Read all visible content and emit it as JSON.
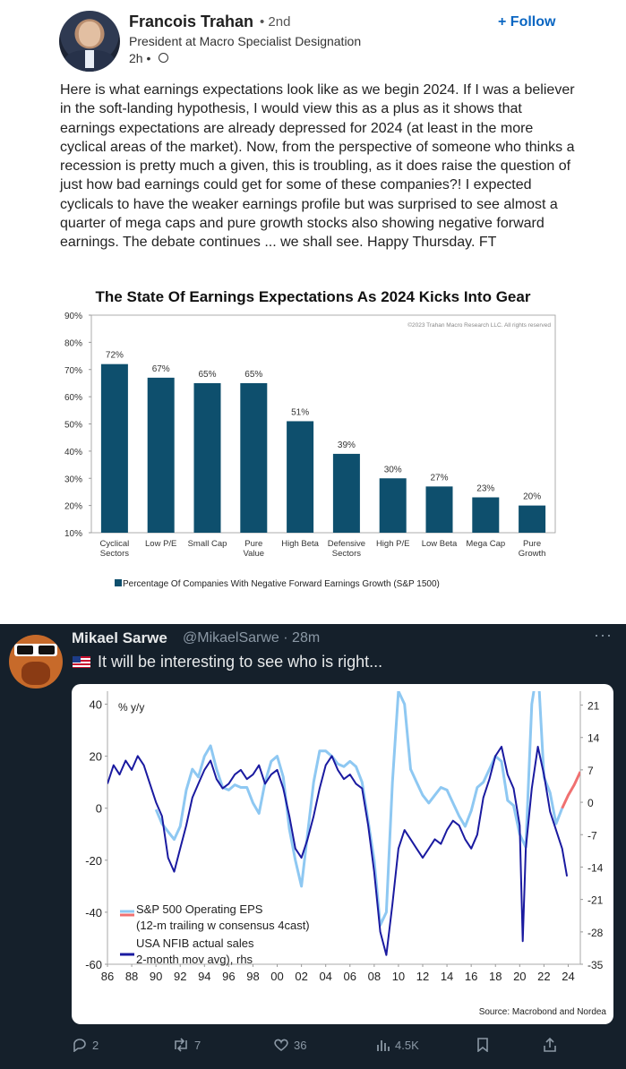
{
  "linkedin": {
    "author_name": "Francois Trahan",
    "connection_degree": "• 2nd",
    "headline": "President at Macro Specialist Designation",
    "time": "2h •",
    "follow_label": "+ Follow",
    "post_text": "Here is what earnings expectations look like as we begin 2024. If I was a believer in the soft-landing hypothesis, I would view this as a plus as it shows that earnings expectations are already depressed for 2024 (at least in the more cyclical areas of the market). Now, from the perspective of someone who thinks a recession is pretty much a given, this is troubling, as it does raise the question of just how bad earnings could get for some of these companies?! I expected cyclicals to have the weaker earnings profile but was surprised to see almost a quarter of mega caps and pure growth stocks also showing negative forward earnings. The debate continues ... we shall see. Happy Thursday. FT"
  },
  "tweet": {
    "author_name": "Mikael Sarwe",
    "handle_time": "@MikaelSarwe · 28m",
    "more_icon": "more-icon",
    "text": "It will be interesting to see who is right...",
    "source": "Source: Macrobond and Nordea",
    "actions": {
      "replies": "2",
      "retweets": "7",
      "likes": "36",
      "views": "4.5K"
    }
  },
  "chart_data": [
    {
      "type": "bar",
      "title": "The State Of Earnings Expectations As 2024 Kicks Into Gear",
      "copyright": "©2023 Trahan Macro Research LLC. All rights reserved",
      "categories": [
        [
          "Cyclical",
          "Sectors"
        ],
        [
          "Low P/E"
        ],
        [
          "Small Cap"
        ],
        [
          "Pure",
          "Value"
        ],
        [
          "High Beta"
        ],
        [
          "Defensive",
          "Sectors"
        ],
        [
          "High P/E"
        ],
        [
          "Low Beta"
        ],
        [
          "Mega Cap"
        ],
        [
          "Pure",
          "Growth"
        ]
      ],
      "values": [
        72,
        67,
        65,
        65,
        51,
        39,
        30,
        27,
        23,
        20
      ],
      "data_labels": [
        "72%",
        "67%",
        "65%",
        "65%",
        "51%",
        "39%",
        "30%",
        "27%",
        "23%",
        "20%"
      ],
      "yticks": [
        "90%",
        "80%",
        "70%",
        "60%",
        "50%",
        "40%",
        "30%",
        "20%",
        "10%"
      ],
      "ylim": [
        10,
        90
      ],
      "legend": "Percentage Of Companies With Negative Forward Earnings Growth (S&P 1500)",
      "color": "#0e4f6d"
    },
    {
      "type": "line",
      "ylabel_left": "% y/y",
      "yticks_left": [
        "40",
        "20",
        "0",
        "-20",
        "-40",
        "-60"
      ],
      "ylim_left": [
        -60,
        45
      ],
      "yticks_right": [
        "21",
        "14",
        "7",
        "0",
        "-7",
        "-14",
        "-21",
        "-28",
        "-35"
      ],
      "ylim_right": [
        -35,
        24
      ],
      "xticks": [
        "86",
        "88",
        "90",
        "92",
        "94",
        "96",
        "98",
        "00",
        "02",
        "04",
        "06",
        "08",
        "10",
        "12",
        "14",
        "16",
        "18",
        "20",
        "22",
        "24"
      ],
      "xlim": [
        1986,
        2025
      ],
      "series": [
        {
          "name": "S&P 500 Operating EPS (12-m trailing w consensus 4cast)",
          "legend_lines": [
            "S&P 500 Operating EPS",
            "(12-m trailing w consensus 4cast)"
          ],
          "axis": "left",
          "color": "#8ec8f2",
          "forecast_color": "#f07070",
          "x": [
            1990.0,
            1990.5,
            1991.0,
            1991.5,
            1992.0,
            1992.5,
            1993.0,
            1993.5,
            1994.0,
            1994.5,
            1995.0,
            1995.5,
            1996.0,
            1996.5,
            1997.0,
            1997.5,
            1998.0,
            1998.5,
            1999.0,
            1999.5,
            2000.0,
            2000.5,
            2001.0,
            2001.5,
            2002.0,
            2002.5,
            2003.0,
            2003.5,
            2004.0,
            2004.5,
            2005.0,
            2005.5,
            2006.0,
            2006.5,
            2007.0,
            2007.5,
            2008.0,
            2008.5,
            2009.0,
            2009.5,
            2010.0,
            2010.5,
            2011.0,
            2011.5,
            2012.0,
            2012.5,
            2013.0,
            2013.5,
            2014.0,
            2014.5,
            2015.0,
            2015.5,
            2016.0,
            2016.5,
            2017.0,
            2017.5,
            2018.0,
            2018.5,
            2019.0,
            2019.5,
            2020.0,
            2020.5,
            2021.0,
            2021.5,
            2022.0,
            2022.5,
            2023.0,
            2023.5
          ],
          "y": [
            -0.5,
            -6,
            -9,
            -12,
            -7,
            7,
            15,
            12,
            20,
            24,
            15,
            8,
            7,
            9,
            8,
            8,
            2,
            -2,
            10,
            18,
            20,
            12,
            -8,
            -20,
            -30,
            -10,
            10,
            22,
            22,
            20,
            17,
            16,
            18,
            16,
            10,
            -5,
            -20,
            -45,
            -40,
            10,
            45,
            40,
            15,
            10,
            5,
            2,
            5,
            8,
            7,
            2,
            -3,
            -7,
            -1,
            8,
            10,
            15,
            20,
            18,
            3,
            1,
            -10,
            -15,
            40,
            55,
            12,
            6,
            -6,
            0
          ],
          "forecast_x": [
            2024.0,
            2024.5,
            2025.0
          ],
          "forecast_y": [
            5,
            9,
            14
          ]
        },
        {
          "name": "USA NFIB actual sales 2-month mov avg), rhs",
          "legend_lines": [
            "USA NFIB actual sales",
            "2-month mov avg), rhs"
          ],
          "axis": "right",
          "color": "#1a1aa0",
          "x": [
            1986.0,
            1986.5,
            1987.0,
            1987.5,
            1988.0,
            1988.5,
            1989.0,
            1989.5,
            1990.0,
            1990.5,
            1991.0,
            1991.5,
            1992.0,
            1992.5,
            1993.0,
            1993.5,
            1994.0,
            1994.5,
            1995.0,
            1995.5,
            1996.0,
            1996.5,
            1997.0,
            1997.5,
            1998.0,
            1998.5,
            1999.0,
            1999.5,
            2000.0,
            2000.5,
            2001.0,
            2001.5,
            2002.0,
            2002.5,
            2003.0,
            2003.5,
            2004.0,
            2004.5,
            2005.0,
            2005.5,
            2006.0,
            2006.5,
            2007.0,
            2007.5,
            2008.0,
            2008.5,
            2009.0,
            2009.5,
            2010.0,
            2010.5,
            2011.0,
            2011.5,
            2012.0,
            2012.5,
            2013.0,
            2013.5,
            2014.0,
            2014.5,
            2015.0,
            2015.5,
            2016.0,
            2016.5,
            2017.0,
            2017.5,
            2018.0,
            2018.5,
            2019.0,
            2019.5,
            2020.0,
            2020.25,
            2020.5,
            2021.0,
            2021.5,
            2022.0,
            2022.5,
            2023.0,
            2023.5,
            2023.9
          ],
          "y": [
            4,
            8,
            6,
            9,
            7,
            10,
            8,
            4,
            0,
            -3,
            -12,
            -15,
            -10,
            -5,
            1,
            4,
            7,
            9,
            5,
            3,
            4,
            6,
            7,
            5,
            6,
            8,
            4,
            6,
            7,
            3,
            -3,
            -10,
            -12,
            -8,
            -3,
            3,
            8,
            10,
            7,
            5,
            6,
            4,
            3,
            -5,
            -15,
            -28,
            -33,
            -22,
            -10,
            -6,
            -8,
            -10,
            -12,
            -10,
            -8,
            -9,
            -6,
            -4,
            -5,
            -8,
            -10,
            -7,
            1,
            5,
            10,
            12,
            6,
            3,
            -5,
            -30,
            -10,
            3,
            12,
            6,
            -2,
            -6,
            -10,
            -16
          ]
        }
      ]
    }
  ]
}
